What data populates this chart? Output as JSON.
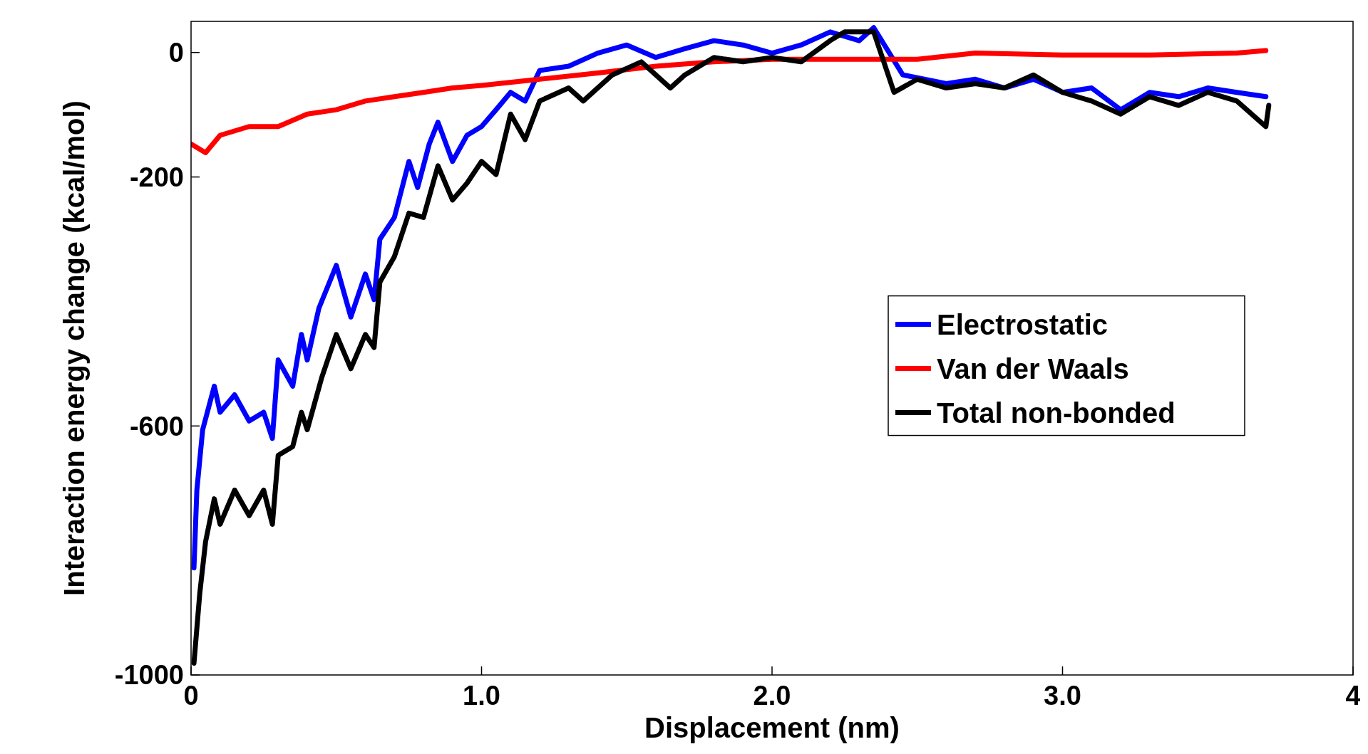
{
  "chart_data": {
    "type": "line",
    "xlabel": "Displacement (nm)",
    "ylabel": "Interaction energy change (kcal/mol)",
    "xlim": [
      0,
      4
    ],
    "ylim": [
      -1000,
      50
    ],
    "xticks": [
      0,
      {
        "value": 1,
        "label": "1.0"
      },
      {
        "value": 2,
        "label": "2.0"
      },
      {
        "value": 3,
        "label": "3.0"
      },
      4
    ],
    "yticks": [
      0,
      -200,
      -600,
      -1000
    ],
    "grid": false,
    "legend": "right",
    "line_style": "solid",
    "marker": "none",
    "series": [
      {
        "name": "Electrostatic",
        "color": "#0000ff",
        "x": [
          0.01,
          0.02,
          0.04,
          0.08,
          0.1,
          0.15,
          0.2,
          0.25,
          0.28,
          0.3,
          0.35,
          0.38,
          0.4,
          0.44,
          0.5,
          0.55,
          0.6,
          0.63,
          0.65,
          0.7,
          0.75,
          0.78,
          0.82,
          0.85,
          0.9,
          0.95,
          1.0,
          1.05,
          1.1,
          1.15,
          1.2,
          1.3,
          1.4,
          1.5,
          1.6,
          1.7,
          1.8,
          1.9,
          2.0,
          2.1,
          2.2,
          2.3,
          2.35,
          2.45,
          2.6,
          2.7,
          2.8,
          2.9,
          3.0,
          3.1,
          3.2,
          3.3,
          3.4,
          3.5,
          3.6,
          3.7
        ],
        "values": [
          -828,
          -703,
          -606,
          -536,
          -578,
          -550,
          -592,
          -578,
          -620,
          -494,
          -536,
          -453,
          -494,
          -411,
          -342,
          -425,
          -356,
          -397,
          -300,
          -265,
          -175,
          -217,
          -147,
          -112,
          -175,
          -133,
          -119,
          -92,
          -64,
          -78,
          -29,
          -22,
          -1,
          12,
          -8,
          6,
          19,
          12,
          -1,
          12,
          33,
          19,
          40,
          -36,
          -50,
          -43,
          -57,
          -43,
          -64,
          -57,
          -92,
          -64,
          -71,
          -57,
          -64,
          -71
        ]
      },
      {
        "name": "Van der Waals",
        "color": "#ff0000",
        "x": [
          0.0,
          0.05,
          0.1,
          0.2,
          0.3,
          0.4,
          0.5,
          0.6,
          0.7,
          0.8,
          0.9,
          1.0,
          1.2,
          1.4,
          1.6,
          1.8,
          2.0,
          2.2,
          2.5,
          2.7,
          3.0,
          3.3,
          3.6,
          3.7
        ],
        "values": [
          -147,
          -161,
          -133,
          -119,
          -119,
          -99,
          -92,
          -78,
          -71,
          -64,
          -57,
          -53,
          -43,
          -33,
          -22,
          -15,
          -11,
          -11,
          -11,
          -1,
          -4,
          -4,
          -1,
          3
        ]
      },
      {
        "name": "Total non-bonded",
        "color": "#000000",
        "x": [
          0.01,
          0.03,
          0.05,
          0.08,
          0.1,
          0.15,
          0.2,
          0.25,
          0.28,
          0.3,
          0.35,
          0.38,
          0.4,
          0.45,
          0.5,
          0.55,
          0.6,
          0.63,
          0.65,
          0.7,
          0.75,
          0.8,
          0.85,
          0.9,
          0.95,
          1.0,
          1.05,
          1.1,
          1.15,
          1.2,
          1.3,
          1.35,
          1.45,
          1.55,
          1.65,
          1.7,
          1.8,
          1.9,
          2.0,
          2.1,
          2.2,
          2.25,
          2.35,
          2.42,
          2.5,
          2.6,
          2.7,
          2.8,
          2.9,
          3.0,
          3.1,
          3.2,
          3.3,
          3.4,
          3.5,
          3.6,
          3.7,
          3.71
        ],
        "values": [
          -981,
          -869,
          -786,
          -717,
          -758,
          -703,
          -744,
          -703,
          -758,
          -647,
          -633,
          -578,
          -606,
          -522,
          -453,
          -508,
          -453,
          -474,
          -369,
          -328,
          -258,
          -265,
          -182,
          -237,
          -210,
          -175,
          -196,
          -99,
          -140,
          -78,
          -57,
          -78,
          -36,
          -15,
          -57,
          -36,
          -8,
          -15,
          -8,
          -15,
          19,
          33,
          33,
          -64,
          -43,
          -57,
          -50,
          -57,
          -36,
          -64,
          -78,
          -99,
          -71,
          -85,
          -64,
          -78,
          -119,
          -85
        ]
      }
    ]
  }
}
